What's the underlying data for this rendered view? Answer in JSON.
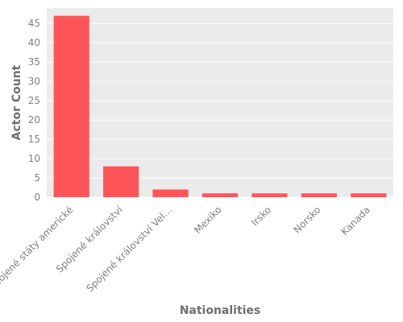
{
  "chart_data": {
    "type": "bar",
    "title": "",
    "xlabel": "Nationalities",
    "ylabel": "Actor Count",
    "categories": [
      "Spojené státy americké",
      "Spojené království",
      "Spojené království Vel…",
      "Mexiko",
      "Irsko",
      "Norsko",
      "Kanada"
    ],
    "values": [
      47,
      8,
      2,
      1,
      1,
      1,
      1
    ],
    "ylim": [
      0,
      49
    ],
    "yticks": [
      0,
      5,
      10,
      15,
      20,
      25,
      30,
      35,
      40,
      45
    ],
    "grid": true,
    "legend": "none",
    "colors": {
      "bar": "#ff5558",
      "plot_background": "#ebebeb",
      "grid": "#ffffff",
      "text": "#7f7f7f"
    }
  }
}
